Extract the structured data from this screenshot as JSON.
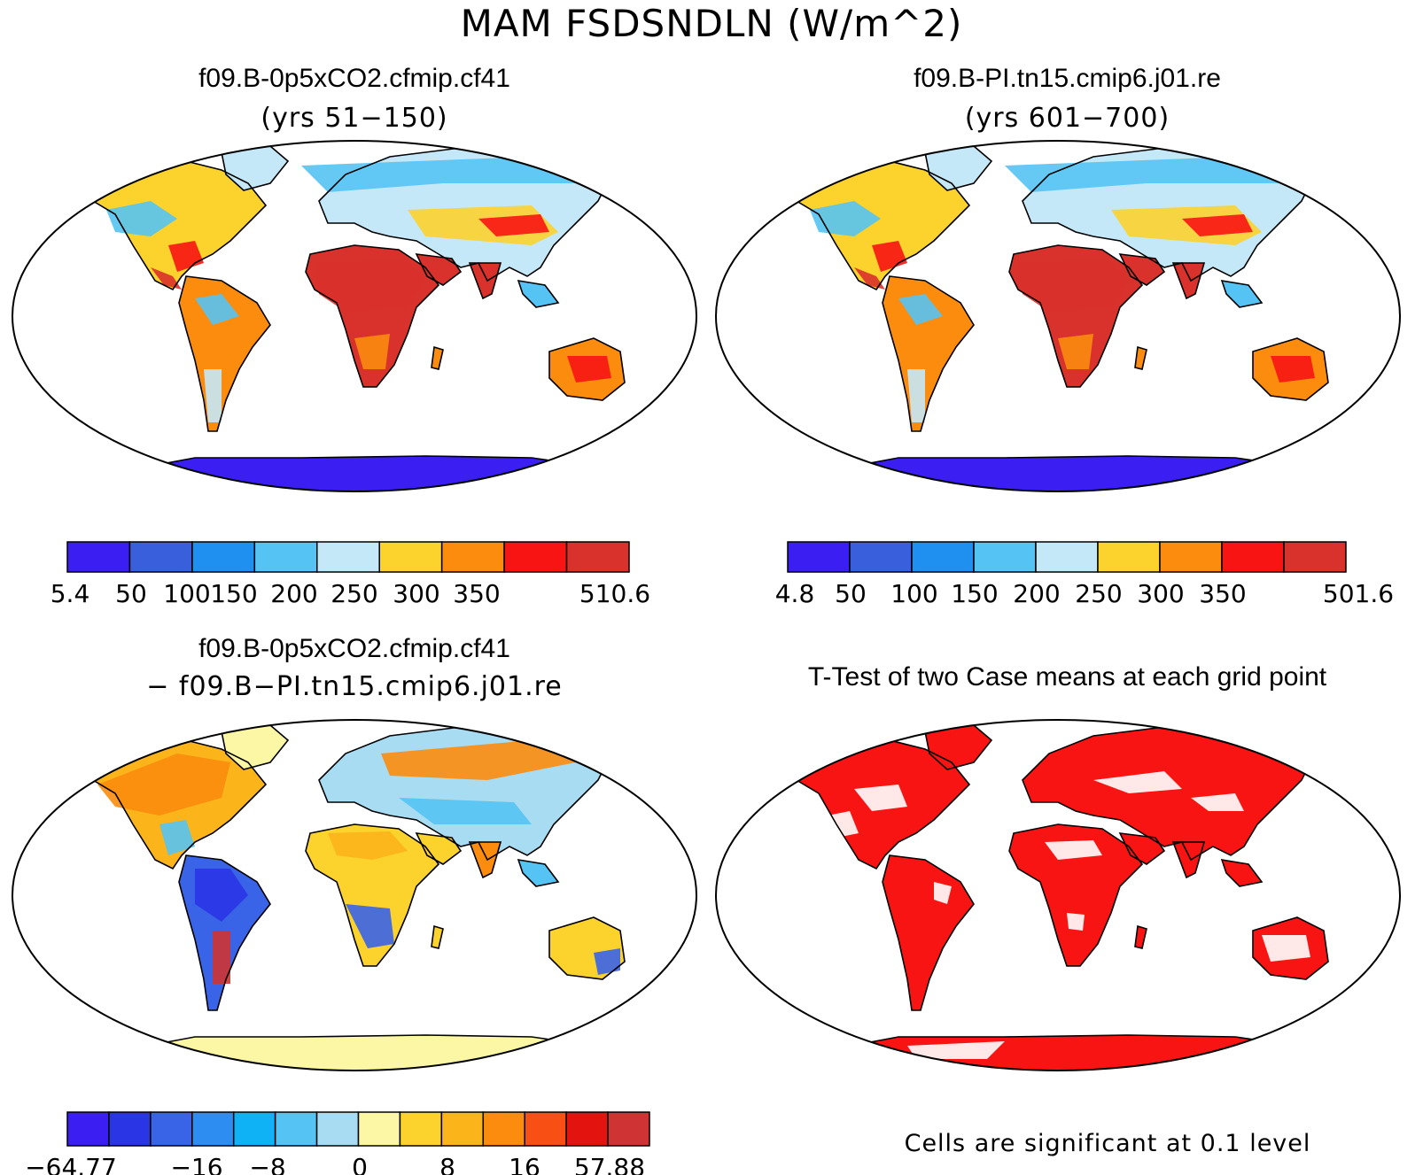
{
  "title": "MAM FSDSNDLN (W/m^2)",
  "panels": [
    {
      "id": "case1",
      "title": "f09.B-0p5xCO2.cfmip.cf41",
      "subtitle": "(yrs 51−150)",
      "colorbar": {
        "colors": [
          "#3a1ef2",
          "#3a5fdc",
          "#1f8ff0",
          "#55c3f3",
          "#c5e8f8",
          "#fcd22c",
          "#fb8c0e",
          "#f71413",
          "#d9312c"
        ],
        "labels": [
          "5.4",
          "50",
          "100",
          "150",
          "200",
          "250",
          "300",
          "350",
          "510.6"
        ]
      }
    },
    {
      "id": "case2",
      "title": "f09.B-PI.tn15.cmip6.j01.re",
      "subtitle": "(yrs 601−700)",
      "colorbar": {
        "colors": [
          "#3a1ef2",
          "#3a5fdc",
          "#1f8ff0",
          "#55c3f3",
          "#c5e8f8",
          "#fcd22c",
          "#fb8c0e",
          "#f71413",
          "#d9312c"
        ],
        "labels": [
          "4.8",
          "50",
          "100",
          "150",
          "200",
          "250",
          "300",
          "350",
          "501.6"
        ]
      }
    },
    {
      "id": "diff",
      "title": "f09.B-0p5xCO2.cfmip.cf41",
      "subtitle": "− f09.B−PI.tn15.cmip6.j01.re",
      "colorbar": {
        "colors": [
          "#3a1ef2",
          "#2a35e6",
          "#3a64e8",
          "#2d8df0",
          "#0fb3f5",
          "#55c3f3",
          "#a8dcf2",
          "#fcf7a5",
          "#fcd22c",
          "#fbb41a",
          "#fb8c0e",
          "#f84f14",
          "#e3140f",
          "#d03333"
        ],
        "labels": [
          "−64.77",
          "−16",
          "−8",
          "0",
          "8",
          "16",
          "57.88"
        ]
      }
    },
    {
      "id": "ttest",
      "title": "T-Test of two Case means at each grid point",
      "note": "Cells are significant at 0.1 level"
    }
  ]
}
